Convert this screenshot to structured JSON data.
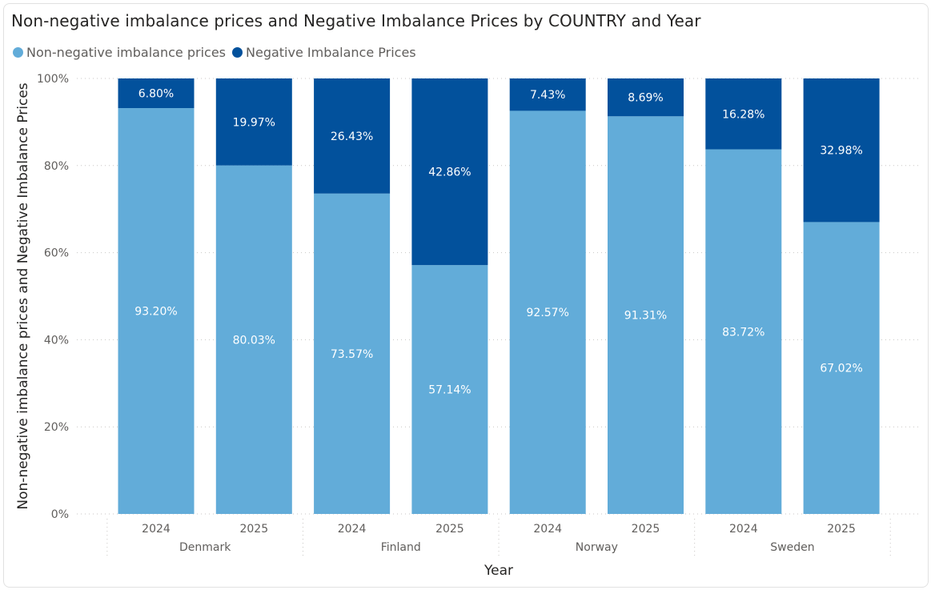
{
  "title": "Non-negative imbalance prices and Negative Imbalance Prices by COUNTRY and Year",
  "legend": [
    {
      "name": "Non-negative imbalance prices",
      "color": "#62acd9"
    },
    {
      "name": "Negative Imbalance Prices",
      "color": "#02519c"
    }
  ],
  "chart_data": {
    "type": "bar",
    "stacked": "100%",
    "title": "Non-negative imbalance prices and Negative Imbalance Prices by COUNTRY and Year",
    "xlabel": "Year",
    "ylabel": "Non-negative imbalance prices and Negative Imbalance Prices",
    "ylim": [
      0,
      100
    ],
    "yticks": [
      "0%",
      "20%",
      "40%",
      "60%",
      "80%",
      "100%"
    ],
    "grid": true,
    "legend_position": "top-left",
    "groups": [
      "Denmark",
      "Finland",
      "Norway",
      "Sweden"
    ],
    "categories": [
      "2024",
      "2025",
      "2024",
      "2025",
      "2024",
      "2025",
      "2024",
      "2025"
    ],
    "category_groups": [
      "Denmark",
      "Denmark",
      "Finland",
      "Finland",
      "Norway",
      "Norway",
      "Sweden",
      "Sweden"
    ],
    "series": [
      {
        "name": "Non-negative imbalance prices",
        "color": "#62acd9",
        "values": [
          93.2,
          80.03,
          73.57,
          57.14,
          92.57,
          91.31,
          83.72,
          67.02
        ],
        "labels": [
          "93.20%",
          "80.03%",
          "73.57%",
          "57.14%",
          "92.57%",
          "91.31%",
          "83.72%",
          "67.02%"
        ]
      },
      {
        "name": "Negative Imbalance Prices",
        "color": "#02519c",
        "values": [
          6.8,
          19.97,
          26.43,
          42.86,
          7.43,
          8.69,
          16.28,
          32.98
        ],
        "labels": [
          "6.80%",
          "19.97%",
          "26.43%",
          "42.86%",
          "7.43%",
          "8.69%",
          "16.28%",
          "32.98%"
        ]
      }
    ]
  }
}
